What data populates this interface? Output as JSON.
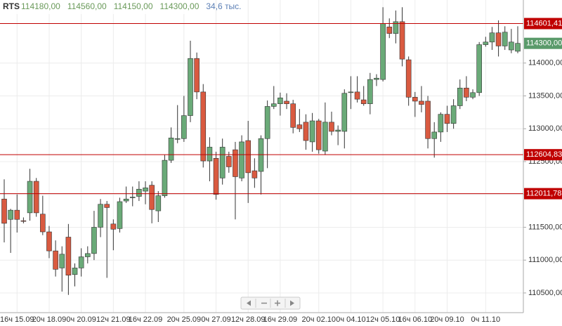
{
  "chart_data": {
    "type": "candlestick",
    "title": "RTS",
    "info_labels": [
      "114180,00",
      "114560,00",
      "114150,00",
      "114300,00"
    ],
    "volume_label": "34,6 тыс.",
    "up_color": "#6aaa78",
    "down_color": "#d95a40",
    "level_color": "#c00000",
    "current_color": "#5a9a6a",
    "grid": true,
    "categories": [
      null,
      null,
      "16ч 15.09",
      null,
      null,
      null,
      null,
      "20ч 18.09",
      null,
      null,
      null,
      null,
      "0ч 20.09",
      null,
      null,
      null,
      null,
      "12ч 21.09",
      null,
      null,
      null,
      null,
      "16ч 22.09",
      null,
      null,
      null,
      null,
      null,
      "20ч 25.09",
      null,
      null,
      null,
      null,
      "0ч 27.09",
      null,
      null,
      null,
      null,
      "12ч 28.09",
      null,
      null,
      null,
      null,
      "16ч 29.09",
      null,
      null,
      null,
      null,
      null,
      "20ч 02.10",
      null,
      null,
      null,
      null,
      "0ч 04.10",
      null,
      null,
      null,
      null,
      "12ч 05.10",
      null,
      null,
      null,
      null,
      "16ч 06.10",
      null,
      null,
      null,
      null,
      "20ч 09.10",
      null,
      null,
      null,
      null,
      null,
      "0ч 11.10",
      null,
      null,
      null,
      null,
      null
    ],
    "open": [
      111930,
      111620,
      111760,
      111600,
      111720,
      112200,
      111700,
      111430,
      111140,
      110880,
      111350,
      110780,
      110880,
      111050,
      111100,
      111500,
      111850,
      111550,
      111480,
      111900,
      111950,
      111970,
      112050,
      112140,
      111750,
      111980,
      112520,
      112850,
      112850,
      113200,
      114070,
      113560,
      112510,
      112550,
      112250,
      112580,
      112680,
      112250,
      112820,
      112360,
      112350,
      112850,
      113340,
      113380,
      113420,
      113380,
      113060,
      113100,
      112800,
      113120,
      112660,
      113100,
      112960,
      112960,
      113550,
      113560,
      113440,
      113380,
      113750,
      113750,
      114550,
      114450,
      114630,
      114050,
      113480,
      113420,
      113420,
      112850,
      112950,
      113220,
      113080,
      113350,
      113620,
      113480,
      113550,
      114280,
      114320,
      114460,
      114260,
      114200,
      114180
    ],
    "high": [
      112230,
      111780,
      112000,
      111650,
      112390,
      112250,
      111980,
      111520,
      111300,
      111210,
      111550,
      110950,
      111180,
      111210,
      111750,
      111930,
      111900,
      111620,
      111950,
      112120,
      112120,
      112200,
      112200,
      112200,
      112050,
      112600,
      113020,
      113360,
      113500,
      114340,
      114160,
      113680,
      112870,
      112650,
      112850,
      112650,
      112800,
      112900,
      113120,
      112550,
      112900,
      113430,
      113650,
      113550,
      113540,
      113440,
      113300,
      113220,
      113240,
      113150,
      113400,
      113260,
      113050,
      113600,
      113800,
      113800,
      113650,
      113850,
      113830,
      114850,
      114680,
      114800,
      114850,
      114100,
      113560,
      113650,
      113500,
      113100,
      113250,
      113350,
      113450,
      113750,
      113800,
      113600,
      114320,
      114400,
      114550,
      114650,
      114560,
      114520,
      114560
    ],
    "low": [
      111270,
      111110,
      111420,
      111560,
      111600,
      111660,
      111380,
      111030,
      110750,
      110520,
      110470,
      110600,
      110750,
      110950,
      111000,
      111350,
      110730,
      111150,
      111420,
      111870,
      111820,
      111900,
      111850,
      111560,
      111580,
      111950,
      112480,
      112780,
      112800,
      113100,
      113450,
      112410,
      112200,
      111920,
      112150,
      112330,
      111620,
      112200,
      111870,
      112100,
      112000,
      112400,
      113300,
      113200,
      113300,
      112930,
      112950,
      112680,
      112650,
      112620,
      112600,
      112900,
      112750,
      112700,
      113300,
      113400,
      113350,
      113220,
      113650,
      113720,
      114380,
      114300,
      113950,
      113350,
      113180,
      113250,
      112700,
      112560,
      112800,
      112950,
      113000,
      113300,
      113420,
      113450,
      113500,
      114250,
      114200,
      114100,
      114200,
      114150,
      114150
    ],
    "close": [
      111560,
      111760,
      111620,
      111590,
      112200,
      111720,
      111430,
      111140,
      110860,
      111090,
      110770,
      110880,
      111050,
      111100,
      111500,
      111850,
      111800,
      111470,
      111890,
      111930,
      111960,
      112080,
      112100,
      111770,
      111980,
      112520,
      112860,
      112850,
      113200,
      114070,
      113560,
      112510,
      112720,
      112000,
      112720,
      112420,
      112270,
      112800,
      112330,
      112250,
      112850,
      113340,
      113380,
      113470,
      113380,
      113020,
      113000,
      112820,
      113120,
      112680,
      113100,
      112960,
      112980,
      113540,
      113560,
      113450,
      113380,
      113750,
      113770,
      114600,
      114450,
      114630,
      114060,
      113480,
      113420,
      113370,
      112850,
      112950,
      113220,
      113080,
      113350,
      113620,
      113480,
      113550,
      114280,
      114320,
      114460,
      114260,
      114470,
      114320,
      114300
    ],
    "ylim": [
      110200,
      114960
    ],
    "yticks": [
      {
        "value": 110500,
        "label": "110500,00"
      },
      {
        "value": 111000,
        "label": "111000,00"
      },
      {
        "value": 111500,
        "label": "111500,00"
      },
      {
        "value": 112000,
        "label": "112000,00"
      },
      {
        "value": 112500,
        "label": "112500,00"
      },
      {
        "value": 113000,
        "label": "113000,00"
      },
      {
        "value": 113500,
        "label": "113500,00"
      },
      {
        "value": 114000,
        "label": "114000,00"
      }
    ],
    "levels": [
      {
        "value": 114601.41,
        "label": "114601,41"
      },
      {
        "value": 112604.83,
        "label": "112604,83"
      },
      {
        "value": 112011.78,
        "label": "112011,78"
      }
    ],
    "current_price": {
      "value": 114300,
      "label": "114300,00"
    }
  }
}
